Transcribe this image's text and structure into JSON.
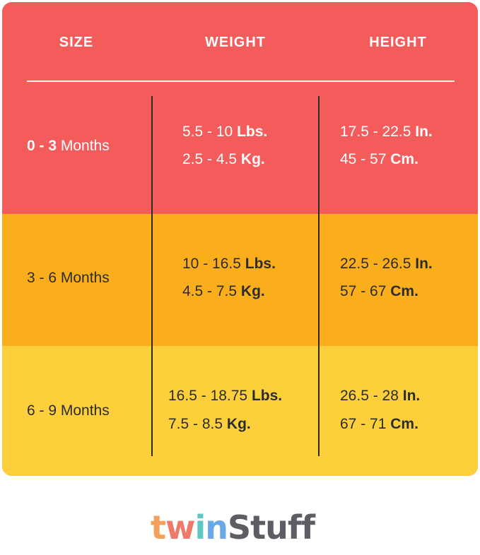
{
  "table": {
    "headers": [
      "SIZE",
      "WEIGHT",
      "HEIGHT"
    ],
    "rows": [
      {
        "size_num": "0 - 3",
        "size_unit": "Months",
        "w1_val": "5.5 - 10",
        "w1_unit": "Lbs.",
        "w2_val": "2.5 - 4.5",
        "w2_unit": "Kg.",
        "h1_val": "17.5 - 22.5",
        "h1_unit": "In.",
        "h2_val": "45 - 57",
        "h2_unit": "Cm."
      },
      {
        "size": "3 - 6 Months",
        "w1_val": "10 - 16.5",
        "w1_unit": "Lbs.",
        "w2_val": "4.5 - 7.5",
        "w2_unit": "Kg.",
        "h1_val": "22.5 - 26.5",
        "h1_unit": "In.",
        "h2_val": "57 - 67",
        "h2_unit": "Cm."
      },
      {
        "size": "6 - 9 Months",
        "w1_val": "16.5 - 18.75",
        "w1_unit": "Lbs.",
        "w2_val": "7.5 - 8.5",
        "w2_unit": "Kg.",
        "h1_val": "26.5 - 28",
        "h1_unit": "In.",
        "h2_val": "67 - 71",
        "h2_unit": "Cm."
      }
    ]
  },
  "colors": {
    "row1": "#f45b5b",
    "row2": "#fbae1c",
    "row3": "#fdd03b"
  },
  "logo": {
    "letters": [
      "t",
      "w",
      "i",
      "n",
      "S",
      "t",
      "u",
      "f",
      "f"
    ],
    "colors": [
      "#f4a05a",
      "#f07a6a",
      "#5ec7c3",
      "#6aa8e8",
      "#5d5d66",
      "#5d5d66",
      "#5d5d66",
      "#5d5d66",
      "#5d5d66"
    ]
  }
}
